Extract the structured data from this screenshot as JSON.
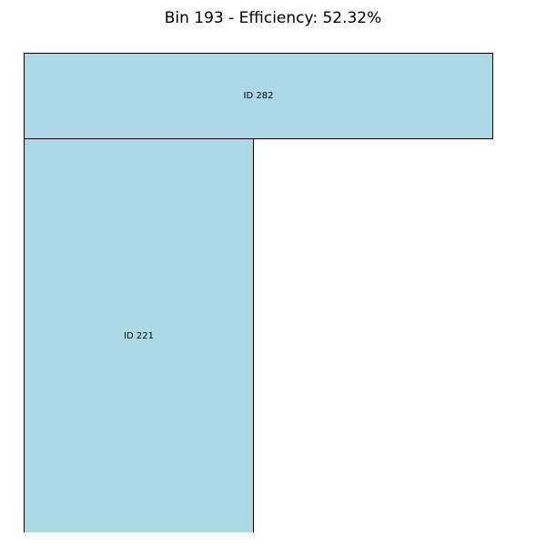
{
  "title": "Bin 193 - Efficiency: 52.32%",
  "colors": {
    "item_fill": "#add8e6",
    "border": "#000000",
    "background": "#ffffff"
  },
  "items": [
    {
      "label": "ID 282"
    },
    {
      "label": "ID 221"
    }
  ]
}
